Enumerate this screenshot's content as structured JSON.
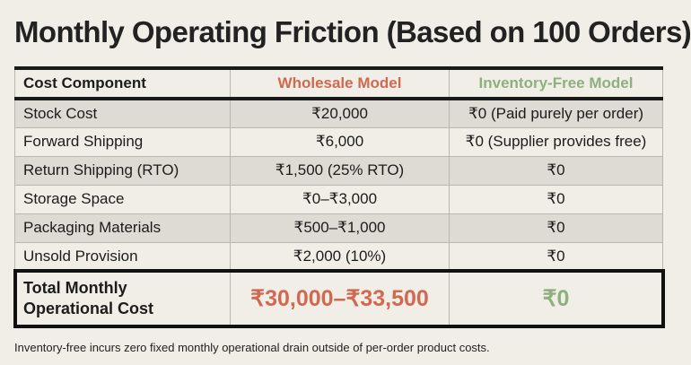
{
  "title": "Monthly Operating Friction (Based on 100 Orders)",
  "headers": [
    "Cost Component",
    "Wholesale Model",
    "Inventory-Free Model"
  ],
  "rows": [
    [
      "Stock Cost",
      "₹20,000",
      "₹0 (Paid purely per order)"
    ],
    [
      "Forward Shipping",
      "₹6,000",
      "₹0 (Supplier provides free)"
    ],
    [
      "Return Shipping (RTO)",
      "₹1,500 (25% RTO)",
      "₹0"
    ],
    [
      "Storage Space",
      "₹0–₹3,000",
      "₹0"
    ],
    [
      "Packaging Materials",
      "₹500–₹1,000",
      "₹0"
    ],
    [
      "Unsold Provision",
      "₹2,000 (10%)",
      "₹0"
    ]
  ],
  "total": {
    "label_line1": "Total Monthly",
    "label_line2": "Operational Cost",
    "wholesale": "₹30,000–₹33,500",
    "inventory_free": "₹0"
  },
  "footnote": "Inventory-free incurs zero fixed monthly operational drain outside of per-order product costs.",
  "colors": {
    "wholesale": "#d0694f",
    "inventory_free": "#8db07f",
    "background": "#f1eee7"
  }
}
